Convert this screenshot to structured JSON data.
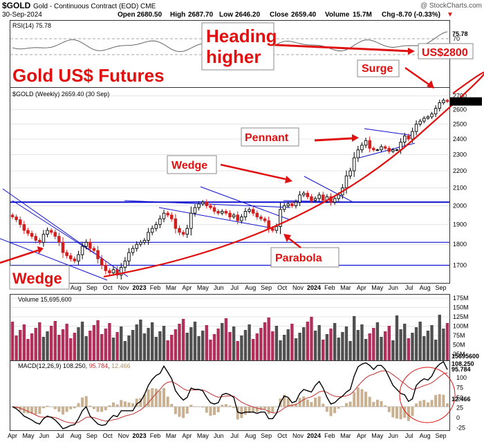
{
  "header": {
    "symbol": "$GOLD",
    "description": "Gold - Continuous Contract (EOD) CME",
    "watermark": "@ StockCharts.com",
    "date": "30-Sep-2024",
    "open_label": "Open",
    "open": "2680.50",
    "high_label": "High",
    "high": "2687.70",
    "low_label": "Low",
    "low": "2646.20",
    "close_label": "Close",
    "close": "2659.40",
    "volume_label": "Volume",
    "volume": "15.7M",
    "chg_label": "Chg",
    "chg": "-8.70 (-0.33%)",
    "chg_arrow": "▼"
  },
  "panels": {
    "rsi_label": "RSI(14) 75.78",
    "price_legend": "$GOLD (Weekly) 2659.40 (30 Sep)",
    "volume_label": "Volume 15,695,600",
    "macd_label_prefix": "MACD(12,26,9)",
    "macd_value": "108.250",
    "macd_signal": "95.784",
    "macd_hist": "12.466"
  },
  "annotations": {
    "title": "Gold US$ Futures",
    "heading_line1": "Heading",
    "heading_line2": "higher",
    "target": "US$2800",
    "surge": "Surge",
    "pennant": "Pennant",
    "wedge_mid": "Wedge",
    "parabola": "Parabola",
    "wedge_left": "Wedge"
  },
  "colors": {
    "up_candle": "#000000",
    "down_candle": "#d21f1f",
    "annotation": "#e01010",
    "trendline": "#1010d0",
    "macd_line": "#000000",
    "signal_line": "#c03030",
    "histogram": "#c8b090",
    "volume_up": "#505050",
    "volume_down": "#b0305a"
  },
  "chart_data": {
    "type": "candlestick",
    "symbol": "$GOLD",
    "interval": "Weekly",
    "scale": "log",
    "y_ticks": [
      1700,
      1800,
      1900,
      2000,
      2100,
      2200,
      2300,
      2400,
      2500,
      2600,
      2700
    ],
    "x_labels": [
      "Apr",
      "May",
      "Jun",
      "Jul",
      "Aug",
      "Sep",
      "Oct",
      "Nov",
      "2023",
      "Feb",
      "Mar",
      "Apr",
      "May",
      "Jun",
      "Jul",
      "Aug",
      "Sep",
      "Oct",
      "Nov",
      "2024",
      "Feb",
      "Mar",
      "Apr",
      "May",
      "Jun",
      "Jul",
      "Aug",
      "Sep"
    ],
    "last_price": 2659.4,
    "horizontal_levels": [
      2020,
      1810,
      1700
    ],
    "closes": [
      1940,
      1925,
      1900,
      1870,
      1855,
      1840,
      1820,
      1810,
      1850,
      1870,
      1860,
      1840,
      1810,
      1760,
      1745,
      1730,
      1720,
      1750,
      1790,
      1810,
      1780,
      1770,
      1730,
      1700,
      1675,
      1665,
      1680,
      1655,
      1690,
      1720,
      1760,
      1780,
      1800,
      1810,
      1820,
      1860,
      1880,
      1900,
      1930,
      1960,
      1950,
      1930,
      1880,
      1860,
      1850,
      1880,
      1960,
      1990,
      2010,
      2020,
      2000,
      1990,
      1970,
      1960,
      1970,
      1960,
      1940,
      1950,
      1920,
      1940,
      1970,
      1980,
      1960,
      1940,
      1930,
      1920,
      1880,
      1870,
      1890,
      1980,
      2000,
      2010,
      2000,
      2020,
      2060,
      2070,
      2050,
      2030,
      2040,
      2060,
      2030,
      2050,
      2020,
      2040,
      2060,
      2100,
      2170,
      2200,
      2280,
      2330,
      2360,
      2390,
      2340,
      2330,
      2330,
      2350,
      2340,
      2320,
      2330,
      2330,
      2380,
      2420,
      2400,
      2450,
      2500,
      2520,
      2540,
      2550,
      2570,
      2610,
      2650,
      2668,
      2659
    ],
    "volume_axis": [
      "175M",
      "150M",
      "125M",
      "100M",
      "75M",
      "50M",
      "25M"
    ],
    "volume_last": "15695600",
    "macd_axis": [
      100,
      75,
      50,
      25,
      0,
      -25
    ],
    "macd": {
      "value": 108.25,
      "signal": 95.784,
      "histogram": 12.466
    },
    "rsi": {
      "value": 75.78,
      "levels": [
        70,
        30
      ]
    }
  }
}
